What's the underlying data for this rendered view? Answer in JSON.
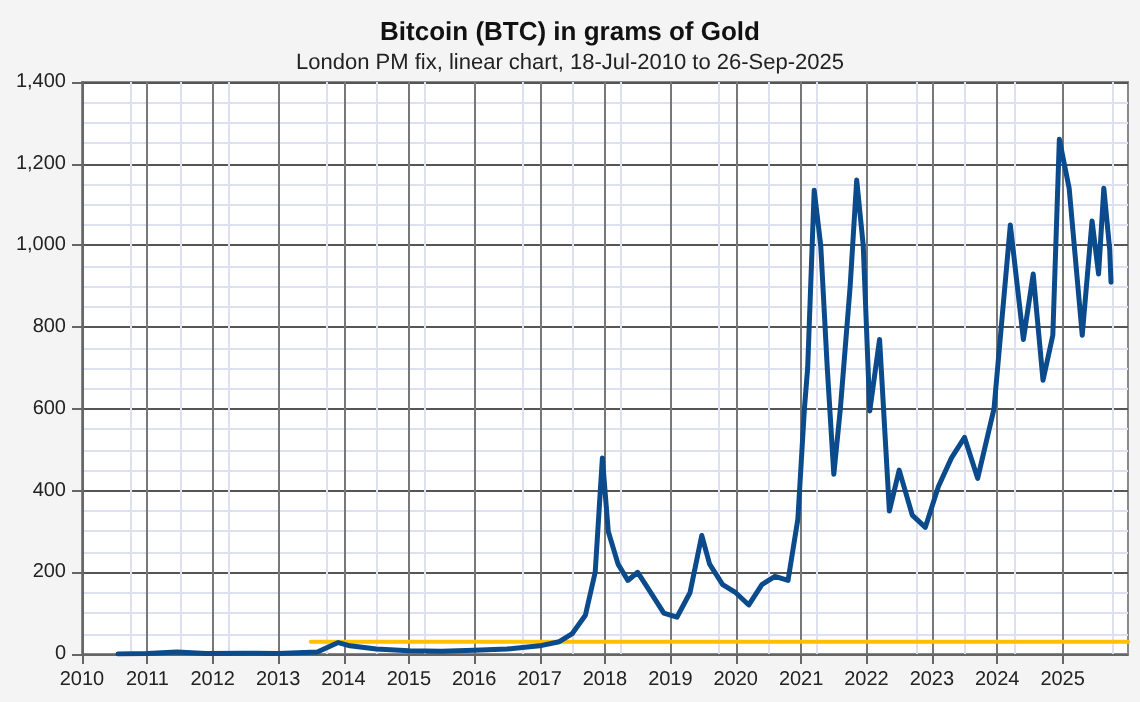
{
  "chart_data": {
    "type": "line",
    "title": "Bitcoin (BTC) in grams of Gold",
    "subtitle": "London PM fix, linear chart, 18-Jul-2010 to 26-Sep-2025",
    "series": [
      {
        "color": "#0b4a8b",
        "x": [
          2010.55,
          2011.0,
          2011.45,
          2011.9,
          2012.5,
          2013.0,
          2013.3,
          2013.6,
          2013.92,
          2014.1,
          2014.5,
          2015.0,
          2015.5,
          2016.0,
          2016.5,
          2017.0,
          2017.3,
          2017.5,
          2017.7,
          2017.85,
          2017.96,
          2018.05,
          2018.2,
          2018.35,
          2018.5,
          2018.7,
          2018.9,
          2019.1,
          2019.3,
          2019.48,
          2019.6,
          2019.8,
          2020.0,
          2020.2,
          2020.4,
          2020.6,
          2020.8,
          2020.95,
          2021.05,
          2021.1,
          2021.2,
          2021.3,
          2021.4,
          2021.5,
          2021.6,
          2021.75,
          2021.85,
          2021.95,
          2022.05,
          2022.2,
          2022.35,
          2022.5,
          2022.7,
          2022.9,
          2023.1,
          2023.3,
          2023.5,
          2023.7,
          2023.95,
          2024.2,
          2024.4,
          2024.55,
          2024.7,
          2024.85,
          2024.95,
          2025.1,
          2025.3,
          2025.45,
          2025.55,
          2025.63,
          2025.72,
          2025.74
        ],
        "values": [
          0,
          1,
          5,
          1,
          2,
          1,
          3,
          5,
          28,
          20,
          12,
          8,
          7,
          9,
          12,
          20,
          30,
          50,
          95,
          200,
          480,
          300,
          220,
          180,
          200,
          150,
          100,
          90,
          150,
          290,
          220,
          170,
          150,
          120,
          170,
          190,
          180,
          330,
          600,
          700,
          1135,
          1000,
          700,
          440,
          600,
          900,
          1160,
          1000,
          595,
          770,
          350,
          450,
          340,
          310,
          410,
          480,
          530,
          430,
          600,
          1050,
          770,
          930,
          670,
          780,
          1260,
          1140,
          780,
          1060,
          930,
          1140,
          990,
          910
        ]
      },
      {
        "color": "#ffc000",
        "x": [
          2013.5,
          2026
        ],
        "values": [
          30,
          30
        ]
      }
    ],
    "xlim": [
      2010,
      2026
    ],
    "xticks": [
      2010,
      2011,
      2012,
      2013,
      2014,
      2015,
      2016,
      2017,
      2018,
      2019,
      2020,
      2021,
      2022,
      2023,
      2024,
      2025
    ],
    "ylim": [
      0,
      1400
    ],
    "yticks": [
      0,
      200,
      400,
      600,
      800,
      {
        "value": 1000,
        "label": "1,000"
      },
      {
        "value": 1200,
        "label": "1,200"
      },
      {
        "value": 1400,
        "label": "1,400"
      }
    ],
    "grid": true,
    "marker": "none",
    "line_style": "solid"
  }
}
